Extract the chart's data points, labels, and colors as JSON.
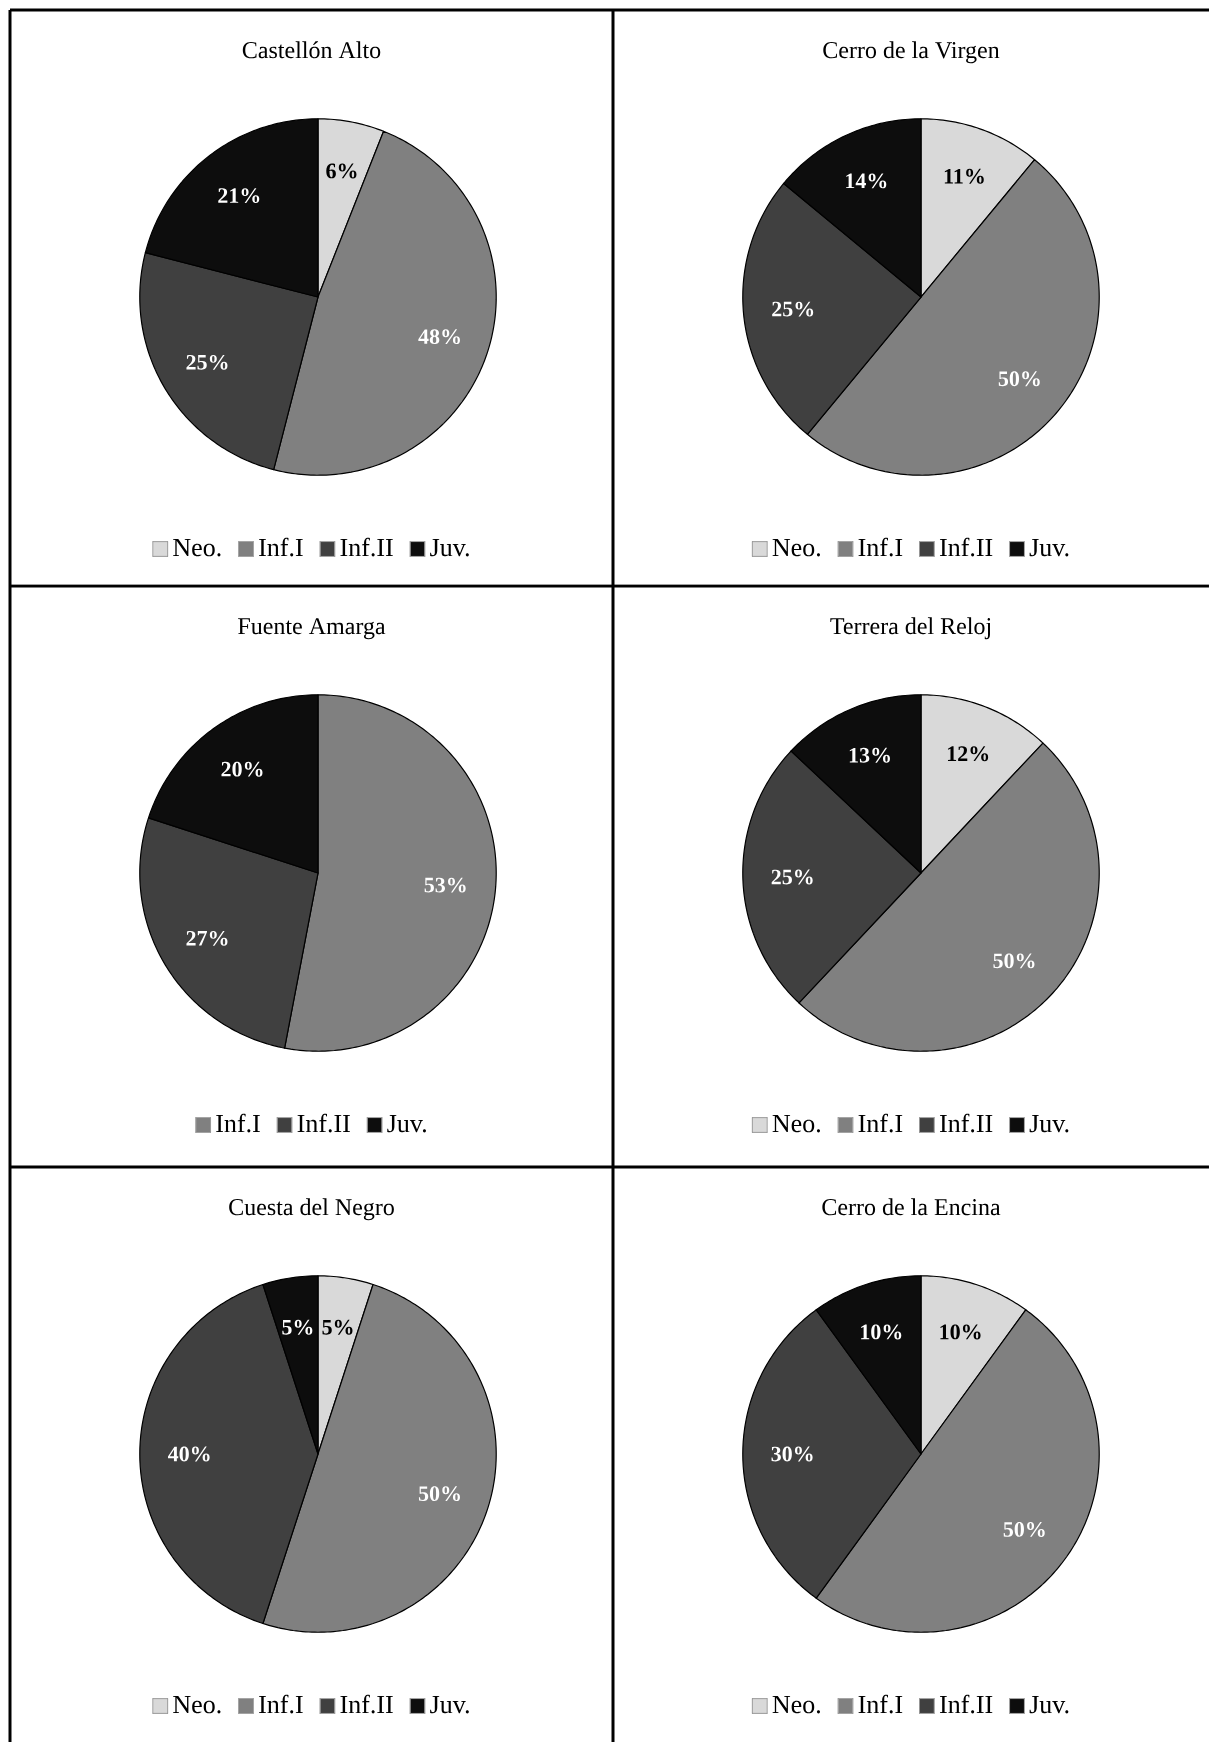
{
  "chart_data": [
    {
      "type": "pie",
      "title": "Castellón Alto",
      "categories": [
        "Neo.",
        "Inf.I",
        "Inf.II",
        "Juv."
      ],
      "values": [
        6,
        48,
        25,
        21
      ],
      "value_labels": [
        "6%",
        "48%",
        "25%",
        "21%"
      ],
      "colors": [
        "#d9d9d9",
        "#808080",
        "#404040",
        "#0d0d0d"
      ],
      "legend": "bottom"
    },
    {
      "type": "pie",
      "title": "Cerro de la Virgen",
      "categories": [
        "Neo.",
        "Inf.I",
        "Inf.II",
        "Juv."
      ],
      "values": [
        11,
        50,
        25,
        14
      ],
      "value_labels": [
        "11%",
        "50%",
        "25%",
        "14%"
      ],
      "colors": [
        "#d9d9d9",
        "#808080",
        "#404040",
        "#0d0d0d"
      ],
      "legend": "bottom"
    },
    {
      "type": "pie",
      "title": "Fuente Amarga",
      "categories": [
        "Inf.I",
        "Inf.II",
        "Juv."
      ],
      "values": [
        53,
        27,
        20
      ],
      "value_labels": [
        "53%",
        "27%",
        "20%"
      ],
      "colors": [
        "#808080",
        "#404040",
        "#0d0d0d"
      ],
      "legend": "bottom"
    },
    {
      "type": "pie",
      "title": "Terrera del Reloj",
      "categories": [
        "Neo.",
        "Inf.I",
        "Inf.II",
        "Juv."
      ],
      "values": [
        12,
        50,
        25,
        13
      ],
      "value_labels": [
        "12%",
        "50%",
        "25%",
        "13%"
      ],
      "colors": [
        "#d9d9d9",
        "#808080",
        "#404040",
        "#0d0d0d"
      ],
      "legend": "bottom"
    },
    {
      "type": "pie",
      "title": "Cuesta del Negro",
      "categories": [
        "Neo.",
        "Inf.I",
        "Inf.II",
        "Juv."
      ],
      "values": [
        5,
        50,
        40,
        5
      ],
      "value_labels": [
        "5%",
        "50%",
        "40%",
        "5%"
      ],
      "colors": [
        "#d9d9d9",
        "#808080",
        "#404040",
        "#0d0d0d"
      ],
      "legend": "bottom"
    },
    {
      "type": "pie",
      "title": "Cerro de la Encina",
      "categories": [
        "Neo.",
        "Inf.I",
        "Inf.II",
        "Juv."
      ],
      "values": [
        10,
        50,
        30,
        10
      ],
      "value_labels": [
        "10%",
        "50%",
        "30%",
        "10%"
      ],
      "colors": [
        "#d9d9d9",
        "#808080",
        "#404040",
        "#0d0d0d"
      ],
      "legend": "bottom"
    }
  ]
}
